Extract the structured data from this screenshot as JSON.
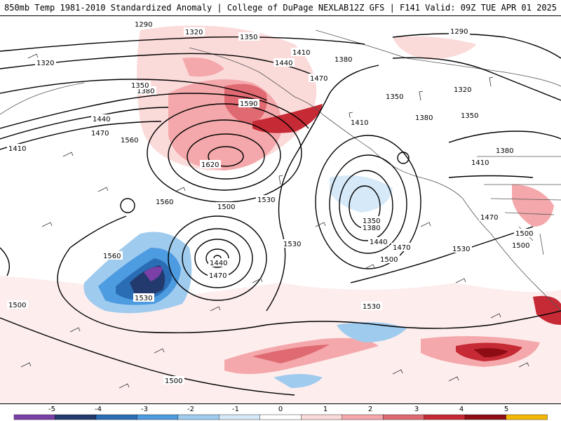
{
  "header": {
    "title_left": "850mb Temp 1981-2010 Standardized Anomaly | College of DuPage NEXLAB",
    "title_right": "12Z GFS | F141 Valid: 09Z TUE APR 01 2025"
  },
  "contour_labels": [
    "1290",
    "1320",
    "1350",
    "1410",
    "1440",
    "1470",
    "1380",
    "1290",
    "1320",
    "1350",
    "1380",
    "1410",
    "1470",
    "1500",
    "1530",
    "1560",
    "1590",
    "1620",
    "1560",
    "1530",
    "1500",
    "1440",
    "1470",
    "1350",
    "1380",
    "1410",
    "1440",
    "1470",
    "1500",
    "1530",
    "1560",
    "1500",
    "1530",
    "1530",
    "1500",
    "1380",
    "1410",
    "1440",
    "1470",
    "1500",
    "1350",
    "1380",
    "1350",
    "1320"
  ],
  "colorbar": {
    "tick_labels": [
      "-5",
      "-4",
      "-3",
      "-2",
      "-1",
      "0",
      "1",
      "2",
      "3",
      "4",
      "5"
    ],
    "colors": [
      "#7b3fa8",
      "#223a6e",
      "#2a6db5",
      "#4d9be0",
      "#9fcbef",
      "#d6e9f8",
      "#ffffff",
      "#fbdada",
      "#f4a8ab",
      "#e06a72",
      "#c62a35",
      "#8e0d15",
      "#f5b800"
    ]
  }
}
